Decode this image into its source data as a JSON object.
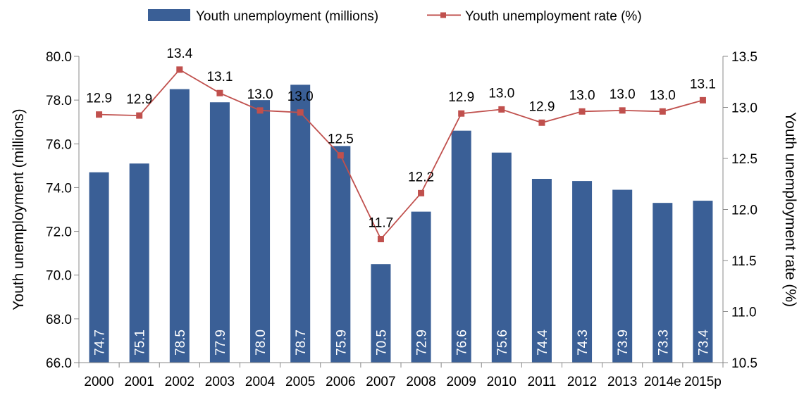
{
  "chart_data": {
    "type": "bar+line",
    "categories": [
      "2000",
      "2001",
      "2002",
      "2003",
      "2004",
      "2005",
      "2006",
      "2007",
      "2008",
      "2009",
      "2010",
      "2011",
      "2012",
      "2013",
      "2014e",
      "2015p"
    ],
    "series": [
      {
        "name": "Youth unemployment (millions)",
        "type": "bar",
        "axis": "left",
        "color": "#3A5F96",
        "values": [
          74.7,
          75.1,
          78.5,
          77.9,
          78.0,
          78.7,
          75.9,
          70.5,
          72.9,
          76.6,
          75.6,
          74.4,
          74.3,
          73.9,
          73.3,
          73.4
        ],
        "labels": [
          "74.7",
          "75.1",
          "78.5",
          "77.9",
          "78.0",
          "78.7",
          "75.9",
          "70.5",
          "72.9",
          "76.6",
          "75.6",
          "74.4",
          "74.3",
          "73.9",
          "73.3",
          "73.4"
        ]
      },
      {
        "name": "Youth unemployment rate (%)",
        "type": "line",
        "axis": "right",
        "color": "#C0504D",
        "values": [
          12.93,
          12.92,
          13.37,
          13.14,
          12.97,
          12.95,
          12.53,
          11.71,
          12.16,
          12.94,
          12.98,
          12.85,
          12.96,
          12.97,
          12.96,
          13.07
        ],
        "labels": [
          "12.9",
          "12.9",
          "13.4",
          "13.1",
          "13.0",
          "13.0",
          "12.5",
          "11.7",
          "12.2",
          "12.9",
          "13.0",
          "12.9",
          "13.0",
          "13.0",
          "13.0",
          "13.1"
        ]
      }
    ],
    "y_left": {
      "label": "Youth unemployment (millions)",
      "ylim": [
        66.0,
        80.0
      ],
      "ticks": [
        "66.0",
        "68.0",
        "70.0",
        "72.0",
        "74.0",
        "76.0",
        "78.0",
        "80.0"
      ]
    },
    "y_right": {
      "label": "Youth unemployment rate (%)",
      "ylim": [
        10.5,
        13.5
      ],
      "ticks": [
        "10.5",
        "11.0",
        "11.5",
        "12.0",
        "12.5",
        "13.0",
        "13.5"
      ]
    },
    "legend_position": "top-center",
    "grid": false
  }
}
